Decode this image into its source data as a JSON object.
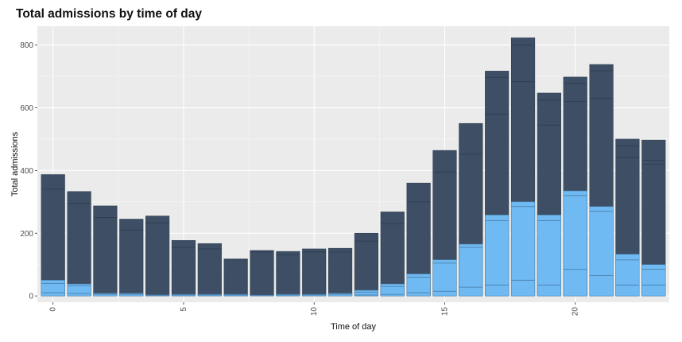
{
  "chart_data": {
    "type": "bar",
    "stacked": true,
    "title": "Total admissions by time of day",
    "xlabel": "Time of day",
    "ylabel": "Total admissions",
    "x": [
      0,
      1,
      2,
      3,
      4,
      5,
      6,
      7,
      8,
      9,
      10,
      11,
      12,
      13,
      14,
      15,
      16,
      17,
      18,
      19,
      20,
      21,
      22,
      23
    ],
    "totals": [
      387,
      333,
      287,
      245,
      255,
      177,
      167,
      118,
      145,
      142,
      150,
      152,
      200,
      268,
      360,
      464,
      550,
      717,
      823,
      647,
      698,
      738,
      500,
      497
    ],
    "light_totals": [
      50,
      38,
      8,
      8,
      3,
      5,
      5,
      5,
      2,
      5,
      5,
      8,
      18,
      38,
      70,
      115,
      165,
      258,
      300,
      258,
      335,
      285,
      133,
      100
    ],
    "stack_boundaries": [
      [
        10,
        40,
        340
      ],
      [
        8,
        33,
        295
      ],
      [
        5,
        250
      ],
      [
        5,
        210
      ],
      [
        2,
        233
      ],
      [
        3,
        155
      ],
      [
        3,
        150
      ],
      [
        3,
        115
      ],
      [
        2,
        140
      ],
      [
        3,
        132
      ],
      [
        3,
        140
      ],
      [
        5,
        140
      ],
      [
        3,
        12,
        175
      ],
      [
        5,
        30,
        230
      ],
      [
        10,
        60,
        300
      ],
      [
        15,
        105,
        395
      ],
      [
        28,
        155,
        452
      ],
      [
        35,
        240,
        580,
        697
      ],
      [
        50,
        285,
        683,
        800
      ],
      [
        35,
        240,
        545,
        625
      ],
      [
        85,
        320,
        620,
        678
      ],
      [
        65,
        270,
        630,
        718
      ],
      [
        35,
        115,
        442,
        478
      ],
      [
        35,
        85,
        420,
        433
      ]
    ],
    "xlim": [
      -0.6,
      23.6
    ],
    "xticks": [
      0,
      5,
      10,
      15,
      20
    ],
    "ylim": [
      -20,
      860
    ],
    "yticks": [
      0,
      200,
      400,
      600,
      800
    ],
    "grid": true,
    "legend": "none",
    "colors": {
      "dark": "#3e4f65",
      "light": "#6fbaf2",
      "segment_line": "#2f3f52",
      "panel": "#ebebeb",
      "grid_major": "#ffffff"
    }
  }
}
